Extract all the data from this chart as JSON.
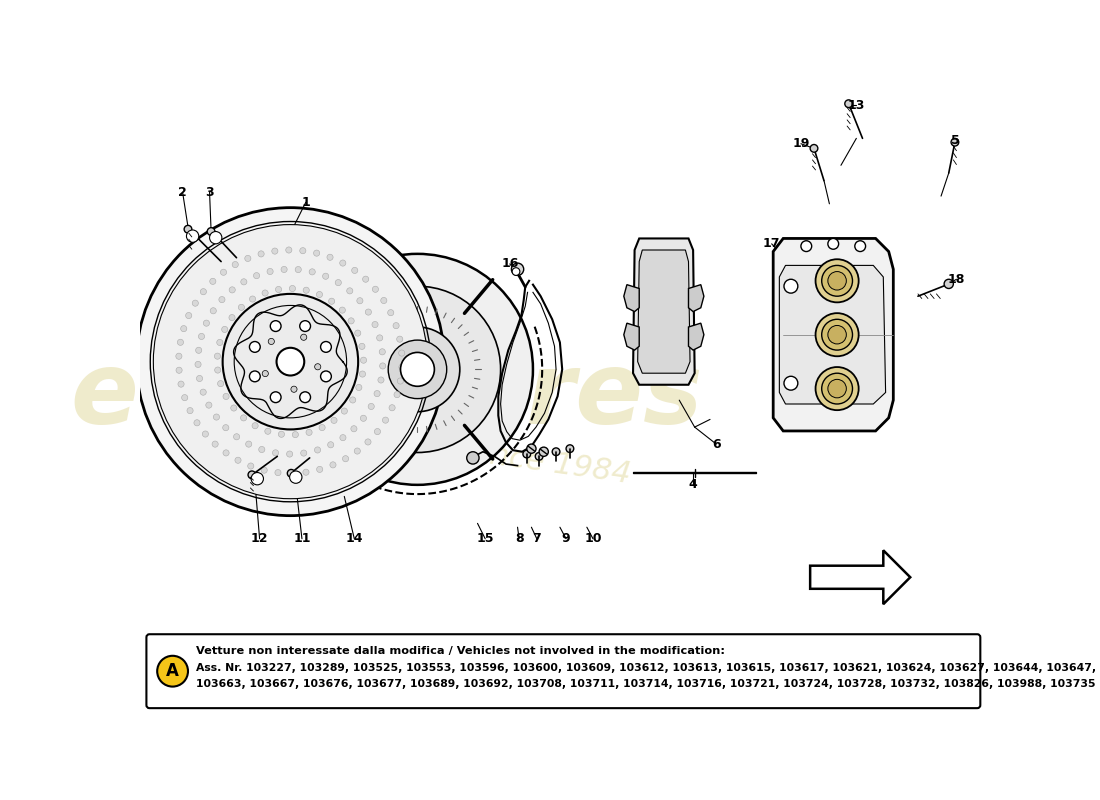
{
  "bg_color": "#ffffff",
  "footer_text_bold": "Vetture non interessate dalla modifica / Vehicles not involved in the modification:",
  "footer_text_line1": "Ass. Nr. 103227, 103289, 103525, 103553, 103596, 103600, 103609, 103612, 103613, 103615, 103617, 103621, 103624, 103627, 103644, 103647,",
  "footer_text_line2": "103663, 103667, 103676, 103677, 103689, 103692, 103708, 103711, 103714, 103716, 103721, 103724, 103728, 103732, 103826, 103988, 103735",
  "circle_A_color": "#f5c518",
  "watermark_color_hex": "#c8b84a",
  "watermark_alpha": 0.28
}
